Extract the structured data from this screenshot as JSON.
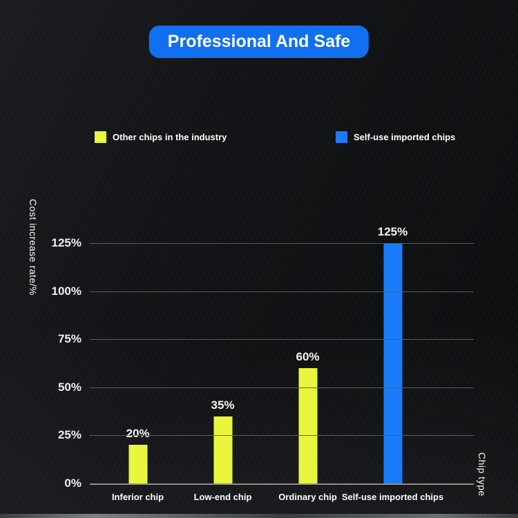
{
  "badge": {
    "label": "Professional And Safe",
    "color": "#1070f0"
  },
  "legend": [
    {
      "label": "Other chips in the industry",
      "color": "#e9f63c"
    },
    {
      "label": "Self-use imported chips",
      "color": "#1a7bf8"
    }
  ],
  "chart_data": {
    "type": "bar",
    "title": "",
    "categories": [
      "Inferior chip",
      "Low-end chip",
      "Ordinary chip",
      "Self-use imported chips"
    ],
    "values": [
      20,
      35,
      60,
      125
    ],
    "value_labels": [
      "20%",
      "35%",
      "60%",
      "125%"
    ],
    "bar_colors": [
      "#e9f63c",
      "#e9f63c",
      "#e9f63c",
      "#1a7bf8"
    ],
    "ylabel": "Cost increase rate/%",
    "xlabel": "Chip type",
    "yticks": [
      0,
      25,
      50,
      75,
      100,
      125
    ],
    "ytick_labels": [
      "0%",
      "25%",
      "50%",
      "75%",
      "100%",
      "125%"
    ],
    "ylim": [
      0,
      125
    ],
    "grid": true,
    "grid_color": "#5c5c5c",
    "background": "dark",
    "legend_position": "top"
  }
}
